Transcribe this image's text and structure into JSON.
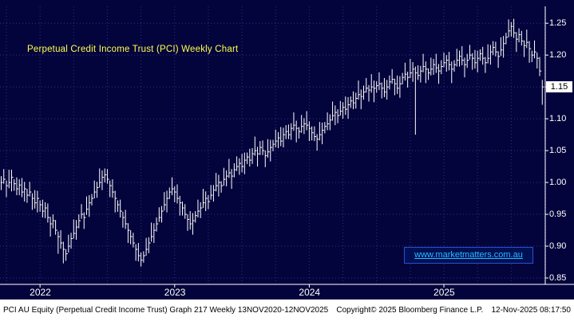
{
  "title": "Perpetual Credit Income Trust (PCI) Weekly Chart",
  "watermark": "www.marketmatters.com.au",
  "footer": {
    "left": "PCI AU Equity (Perpetual Credit Income Trust) Graph 217 Weekly 13NOV2020-12NOV2025",
    "center": "Copyright© 2025 Bloomberg Finance L.P.",
    "right": "12-Nov-2025 08:17:50"
  },
  "axis": {
    "y_ticks": [
      1.25,
      1.2,
      1.15,
      1.1,
      1.05,
      1.0,
      0.95,
      0.9,
      0.85
    ],
    "last_price": "1.15",
    "x_year_labels": [
      {
        "label": "2022",
        "bar": 15
      },
      {
        "label": "2023",
        "bar": 67
      },
      {
        "label": "2024",
        "bar": 119
      },
      {
        "label": "2025",
        "bar": 171
      }
    ]
  },
  "colors": {
    "background": "#04043c",
    "grid": "#2e2e8c",
    "bars": "#ffffff",
    "title": "#ffff4d",
    "watermark_text": "#2fb9ff",
    "watermark_border": "#2d4fd0",
    "last_price_bg": "#ffffff"
  },
  "chart_data": {
    "type": "ohlc-bar",
    "title": "Perpetual Credit Income Trust (PCI) Weekly Chart",
    "period": "Weekly",
    "date_range": "13NOV2020-12NOV2025",
    "ylim": [
      0.84,
      1.2765
    ],
    "ylabel": "",
    "xlabel": "",
    "grid": {
      "v_start_bar": 2,
      "v_step_bars": 13
    },
    "closes": [
      1.0,
      1.005,
      0.995,
      1.0,
      1.008,
      0.998,
      0.99,
      0.996,
      0.985,
      0.99,
      0.98,
      0.985,
      0.975,
      0.968,
      0.975,
      0.965,
      0.955,
      0.96,
      0.945,
      0.935,
      0.94,
      0.925,
      0.915,
      0.905,
      0.895,
      0.888,
      0.9,
      0.912,
      0.92,
      0.93,
      0.94,
      0.95,
      0.945,
      0.958,
      0.968,
      0.975,
      0.985,
      0.992,
      1.0,
      1.008,
      1.012,
      1.005,
      0.995,
      0.985,
      0.975,
      0.965,
      0.955,
      0.945,
      0.935,
      0.925,
      0.915,
      0.905,
      0.895,
      0.885,
      0.878,
      0.885,
      0.895,
      0.905,
      0.915,
      0.925,
      0.935,
      0.945,
      0.955,
      0.965,
      0.975,
      0.985,
      0.99,
      0.985,
      0.975,
      0.968,
      0.96,
      0.95,
      0.942,
      0.935,
      0.94,
      0.948,
      0.955,
      0.96,
      0.968,
      0.975,
      0.97,
      0.98,
      0.988,
      0.995,
      1.0,
      0.995,
      1.005,
      1.01,
      1.015,
      1.01,
      1.02,
      1.025,
      1.03,
      1.025,
      1.035,
      1.04,
      1.035,
      1.045,
      1.05,
      1.045,
      1.055,
      1.05,
      1.042,
      1.048,
      1.055,
      1.06,
      1.065,
      1.07,
      1.065,
      1.075,
      1.08,
      1.075,
      1.085,
      1.09,
      1.085,
      1.08,
      1.088,
      1.092,
      1.09,
      1.085,
      1.078,
      1.072,
      1.068,
      1.075,
      1.082,
      1.088,
      1.092,
      1.098,
      1.105,
      1.11,
      1.105,
      1.112,
      1.118,
      1.115,
      1.122,
      1.128,
      1.125,
      1.132,
      1.138,
      1.135,
      1.142,
      1.148,
      1.145,
      1.15,
      1.148,
      1.152,
      1.155,
      1.148,
      1.142,
      1.15,
      1.158,
      1.162,
      1.155,
      1.148,
      1.155,
      1.165,
      1.17,
      1.165,
      1.172,
      1.178,
      1.172,
      1.168,
      1.175,
      1.182,
      1.178,
      1.172,
      1.178,
      1.185,
      1.18,
      1.175,
      1.182,
      1.188,
      1.192,
      1.185,
      1.178,
      1.185,
      1.192,
      1.198,
      1.192,
      1.185,
      1.192,
      1.2,
      1.195,
      1.188,
      1.195,
      1.202,
      1.195,
      1.188,
      1.195,
      1.205,
      1.212,
      1.205,
      1.198,
      1.208,
      1.218,
      1.228,
      1.238,
      1.245,
      1.235,
      1.225,
      1.232,
      1.222,
      1.215,
      1.22,
      1.21,
      1.2,
      1.205,
      1.195,
      1.175,
      1.15
    ],
    "wick_pattern": [
      0.01,
      0.016,
      0.008,
      0.02,
      0.012,
      0.007,
      0.018,
      0.009,
      0.022,
      0.011
    ],
    "wick_overrides": [
      {
        "i": 22,
        "low": 0.888
      },
      {
        "i": 54,
        "low": 0.868
      },
      {
        "i": 160,
        "low": 1.075
      },
      {
        "i": 197,
        "high": 1.252
      },
      {
        "i": 209,
        "low": 1.122
      }
    ],
    "last_close": 1.15
  }
}
